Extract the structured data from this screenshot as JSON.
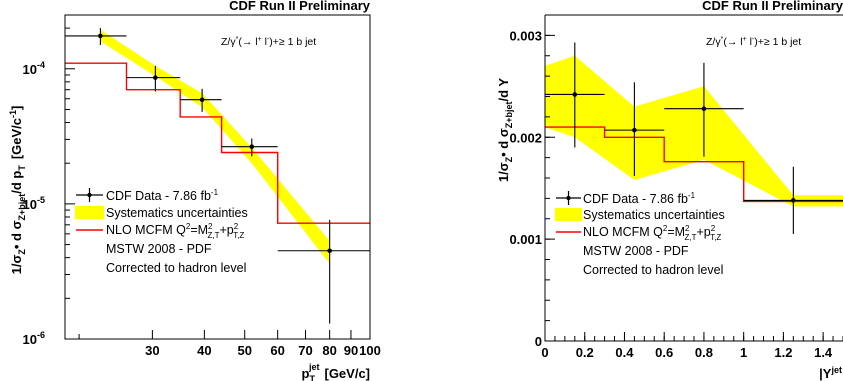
{
  "colors": {
    "band": "#ffff00",
    "theory": "#ff0000",
    "data": "#000000"
  },
  "legend": {
    "data": "CDF Data - 7.86 fb",
    "data_sup": "-1",
    "syst": "Systematics uncertainties",
    "theory_pre": "NLO MCFM Q",
    "theory_mid": "=M",
    "theory_sub1": "Z,T",
    "theory_plus": "+p",
    "theory_sub2": "T,Z",
    "sq": "2",
    "pdf": "MSTW 2008 - PDF",
    "corr": "Corrected to hadron level"
  },
  "process": {
    "main": "Z/γ",
    "star": "*",
    "mid": "(→ l",
    "plus": "+",
    "close": " l",
    "minus": "-",
    "end": ")+≥ 1 b jet"
  },
  "chart_data": [
    {
      "type": "line",
      "title": "CDF Run II Preliminary",
      "xlabel_main": "p",
      "xlabel_sub": "T",
      "xlabel_sup": "jet",
      "xlabel_unit": "[GeV/c]",
      "ylabel_main": "1/σ",
      "ylabel_sub1": "Z",
      "ylabel_mid": "• d σ",
      "ylabel_sub2": "Z+bjet",
      "ylabel_mid2": "/d p",
      "ylabel_sub3": "T",
      "ylabel_unit": "[GeV/c",
      "ylabel_unit_sup": "-1",
      "ylabel_close": "]",
      "xscale": "log",
      "yscale": "log",
      "xlim": [
        18.5,
        100
      ],
      "ylim": [
        1e-06,
        0.00025
      ],
      "xticks": [
        {
          "v": 30,
          "label": "30"
        },
        {
          "v": 40,
          "label": "40"
        },
        {
          "v": 50,
          "label": "50"
        },
        {
          "v": 60,
          "label": "60"
        },
        {
          "v": 70,
          "label": "70"
        },
        {
          "v": 80,
          "label": "80"
        },
        {
          "v": 90,
          "label": "90"
        },
        {
          "v": 100,
          "label": "100"
        }
      ],
      "xminor": [
        20
      ],
      "yticks": [
        {
          "v": 1e-06,
          "base": "10",
          "exp": "-6"
        },
        {
          "v": 1e-05,
          "base": "10",
          "exp": "-5"
        },
        {
          "v": 0.0001,
          "base": "10",
          "exp": "-4"
        }
      ],
      "data": [
        {
          "x": 22.5,
          "xlo": 18.5,
          "xhi": 26,
          "y": 0.000175,
          "ylo": 0.00015,
          "yhi": 0.0002
        },
        {
          "x": 30.5,
          "xlo": 26,
          "xhi": 35,
          "y": 8.6e-05,
          "ylo": 6.8e-05,
          "yhi": 0.000105
        },
        {
          "x": 39.5,
          "xlo": 35,
          "xhi": 44,
          "y": 5.9e-05,
          "ylo": 4.8e-05,
          "yhi": 7.1e-05
        },
        {
          "x": 52,
          "xlo": 44,
          "xhi": 60,
          "y": 2.65e-05,
          "ylo": 2.25e-05,
          "yhi": 3.05e-05
        },
        {
          "x": 80,
          "xlo": 60,
          "xhi": 100,
          "y": 4.5e-06,
          "ylo": 1.3e-06,
          "yhi": 7.6e-06
        }
      ],
      "theory": {
        "edges": [
          18.5,
          26,
          35,
          44,
          60,
          100
        ],
        "values": [
          0.00011,
          7e-05,
          4.4e-05,
          2.4e-05,
          7.2e-06
        ]
      },
      "band": {
        "x": [
          22.5,
          30.5,
          39.5,
          52,
          80
        ],
        "lo": [
          0.00016,
          8.8e-05,
          5.2e-05,
          2e-05,
          3.6e-06
        ],
        "hi": [
          0.000195,
          0.000105,
          6.6e-05,
          2.6e-05,
          5.3e-06
        ]
      }
    },
    {
      "type": "line",
      "title": "CDF Run II Preliminary",
      "xlabel_main": "|Y",
      "xlabel_sup": "jet",
      "xlabel_close": "|",
      "ylabel_main": "1/σ",
      "ylabel_sub1": "Z",
      "ylabel_mid": "• d σ",
      "ylabel_sub2": "Z+bjet",
      "ylabel_mid2": "/d Y",
      "xscale": "linear",
      "yscale": "linear",
      "xlim": [
        0,
        1.5
      ],
      "ylim": [
        0,
        0.0032
      ],
      "xticks": [
        {
          "v": 0,
          "label": "0"
        },
        {
          "v": 0.2,
          "label": "0.2"
        },
        {
          "v": 0.4,
          "label": "0.4"
        },
        {
          "v": 0.6,
          "label": "0.6"
        },
        {
          "v": 0.8,
          "label": "0.8"
        },
        {
          "v": 1.0,
          "label": "1"
        },
        {
          "v": 1.2,
          "label": "1.2"
        },
        {
          "v": 1.4,
          "label": "1.4"
        }
      ],
      "yticks": [
        {
          "v": 0,
          "label": "0"
        },
        {
          "v": 0.001,
          "label": "0.001"
        },
        {
          "v": 0.002,
          "label": "0.002"
        },
        {
          "v": 0.003,
          "label": "0.003"
        }
      ],
      "data": [
        {
          "x": 0.15,
          "xlo": 0.0,
          "xhi": 0.3,
          "y": 0.00242,
          "ylo": 0.0019,
          "yhi": 0.00293
        },
        {
          "x": 0.45,
          "xlo": 0.3,
          "xhi": 0.6,
          "y": 0.00207,
          "ylo": 0.00162,
          "yhi": 0.00254
        },
        {
          "x": 0.8,
          "xlo": 0.6,
          "xhi": 1.0,
          "y": 0.00228,
          "ylo": 0.00181,
          "yhi": 0.00273
        },
        {
          "x": 1.25,
          "xlo": 1.0,
          "xhi": 1.5,
          "y": 0.00138,
          "ylo": 0.00105,
          "yhi": 0.00171
        }
      ],
      "theory": {
        "edges": [
          0.0,
          0.3,
          0.6,
          1.0,
          1.5
        ],
        "values": [
          0.0021,
          0.002,
          0.00176,
          0.00137
        ]
      },
      "band": {
        "x": [
          0.0,
          0.15,
          0.45,
          0.8,
          1.25,
          1.5
        ],
        "lo": [
          0.0021,
          0.002,
          0.00158,
          0.00178,
          0.00132,
          0.00132
        ],
        "hi": [
          0.0027,
          0.0028,
          0.0023,
          0.0025,
          0.00143,
          0.00143
        ]
      }
    }
  ]
}
